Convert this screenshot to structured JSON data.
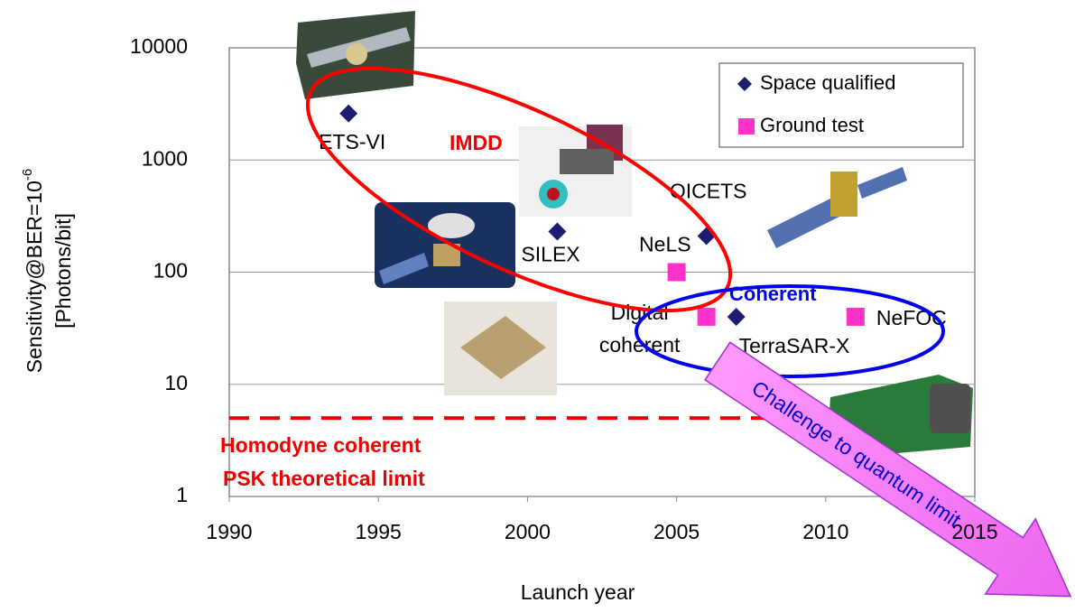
{
  "chart_data": {
    "type": "scatter",
    "xlabel": "Launch year",
    "ylabel": {
      "text": "Sensitivity@BER=10",
      "superscript": "-6",
      "line2": "[Photons/bit]"
    },
    "xlim": [
      1990,
      2015
    ],
    "xticks": [
      1990,
      1995,
      2000,
      2005,
      2010,
      2015
    ],
    "ylim": [
      1,
      10000
    ],
    "yticks": [
      1,
      10,
      100,
      1000,
      10000
    ],
    "log_y": true,
    "grid": true,
    "legend": "top-right",
    "series": [
      {
        "name": "Space qualified",
        "color": "#1c1c70",
        "marker": "diamond",
        "x": [
          1994,
          2001,
          2006,
          2007
        ],
        "values": [
          2600,
          230,
          210,
          40
        ],
        "point_labels": [
          [
            "ETS-VI"
          ],
          [
            "SILEX"
          ],
          [
            "OICETS"
          ],
          [
            "TerraSAR-X"
          ]
        ]
      },
      {
        "name": "Ground test",
        "color": "#ff33cc",
        "marker": "square",
        "x": [
          2005,
          2006,
          2011
        ],
        "values": [
          100,
          40,
          40
        ],
        "point_labels": [
          [
            "NeLS"
          ],
          [
            "Digital",
            "coherent"
          ],
          [
            "NeFOC"
          ]
        ]
      }
    ],
    "annotations": {
      "imdd": "IMDD",
      "coherent": "Coherent",
      "limit": {
        "lines": [
          "Homodyne coherent",
          "PSK theoretical limit"
        ],
        "value": 5,
        "x_end": 2008
      },
      "challenge": "Challenge to quantum limit"
    }
  }
}
